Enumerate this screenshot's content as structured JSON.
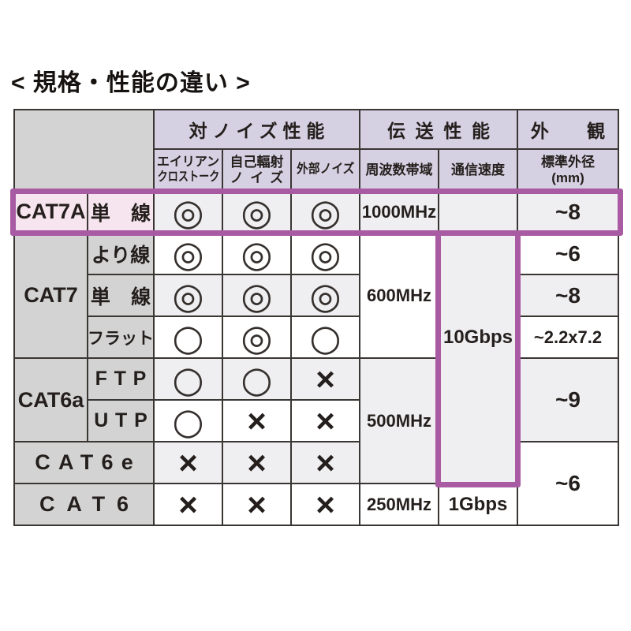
{
  "page": {
    "title": "< 規格・性能の違い >"
  },
  "colors": {
    "highlight_border": "#a85ba2",
    "header_bg": "#d5d0e2",
    "category_bg": "#d3d3d3",
    "highlight_row_bg": "#f6e4ef",
    "shaded_row_bg": "#efeef1",
    "grid_line": "#3a3633",
    "text": "#241f1c"
  },
  "header": {
    "groups": {
      "noise": "対ノイズ性能",
      "transmission": "伝送性能",
      "appearance": "外観"
    },
    "sub": {
      "alien_l1": "エイリアン",
      "alien_l2": "クロストーク",
      "self_l1": "自己輻射",
      "self_l2": "ノイズ",
      "external": "外部ノイズ",
      "frequency": "周波数帯域",
      "speed": "通信速度",
      "diameter_l1": "標準外径",
      "diameter_l2": "(mm)"
    }
  },
  "chart_data": {
    "type": "table",
    "title": "規格・性能の違い",
    "column_groups": [
      {
        "label": "対ノイズ性能",
        "span": 3
      },
      {
        "label": "伝送性能",
        "span": 2
      },
      {
        "label": "外観",
        "span": 1
      }
    ],
    "columns": [
      "エイリアンクロストーク",
      "自己輻射ノイズ",
      "外部ノイズ",
      "周波数帯域",
      "通信速度",
      "標準外径(mm)"
    ],
    "symbol_legend": {
      "double_circle": "◎",
      "circle": "○",
      "cross": "×"
    },
    "rows": [
      {
        "cat": "CAT7A",
        "type": "単線",
        "noise_alien": "◎",
        "noise_self": "◎",
        "noise_ext": "◎",
        "freq": "1000MHz",
        "speed": "10Gbps",
        "dia": "~8",
        "highlighted": true
      },
      {
        "cat": "CAT7",
        "type": "より線",
        "noise_alien": "◎",
        "noise_self": "◎",
        "noise_ext": "◎",
        "freq": "600MHz",
        "speed": "10Gbps",
        "dia": "~6",
        "highlighted": false
      },
      {
        "cat": "CAT7",
        "type": "単線",
        "noise_alien": "◎",
        "noise_self": "◎",
        "noise_ext": "◎",
        "freq": "600MHz",
        "speed": "10Gbps",
        "dia": "~8",
        "highlighted": false
      },
      {
        "cat": "CAT7",
        "type": "フラット",
        "noise_alien": "○",
        "noise_self": "◎",
        "noise_ext": "○",
        "freq": "600MHz",
        "speed": "10Gbps",
        "dia": "~2.2x7.2",
        "highlighted": false
      },
      {
        "cat": "CAT6a",
        "type": "FTP",
        "noise_alien": "○",
        "noise_self": "○",
        "noise_ext": "×",
        "freq": "500MHz",
        "speed": "10Gbps",
        "dia": "~9",
        "highlighted": false
      },
      {
        "cat": "CAT6a",
        "type": "UTP",
        "noise_alien": "○",
        "noise_self": "×",
        "noise_ext": "×",
        "freq": "500MHz",
        "speed": "10Gbps",
        "dia": "~9",
        "highlighted": false
      },
      {
        "cat": "CAT6e",
        "type": "",
        "noise_alien": "×",
        "noise_self": "×",
        "noise_ext": "×",
        "freq": "500MHz",
        "speed": "10Gbps",
        "dia": "~6",
        "highlighted": false
      },
      {
        "cat": "CAT6",
        "type": "",
        "noise_alien": "×",
        "noise_self": "×",
        "noise_ext": "×",
        "freq": "250MHz",
        "speed": "1Gbps",
        "dia": "~6",
        "highlighted": false
      }
    ]
  }
}
